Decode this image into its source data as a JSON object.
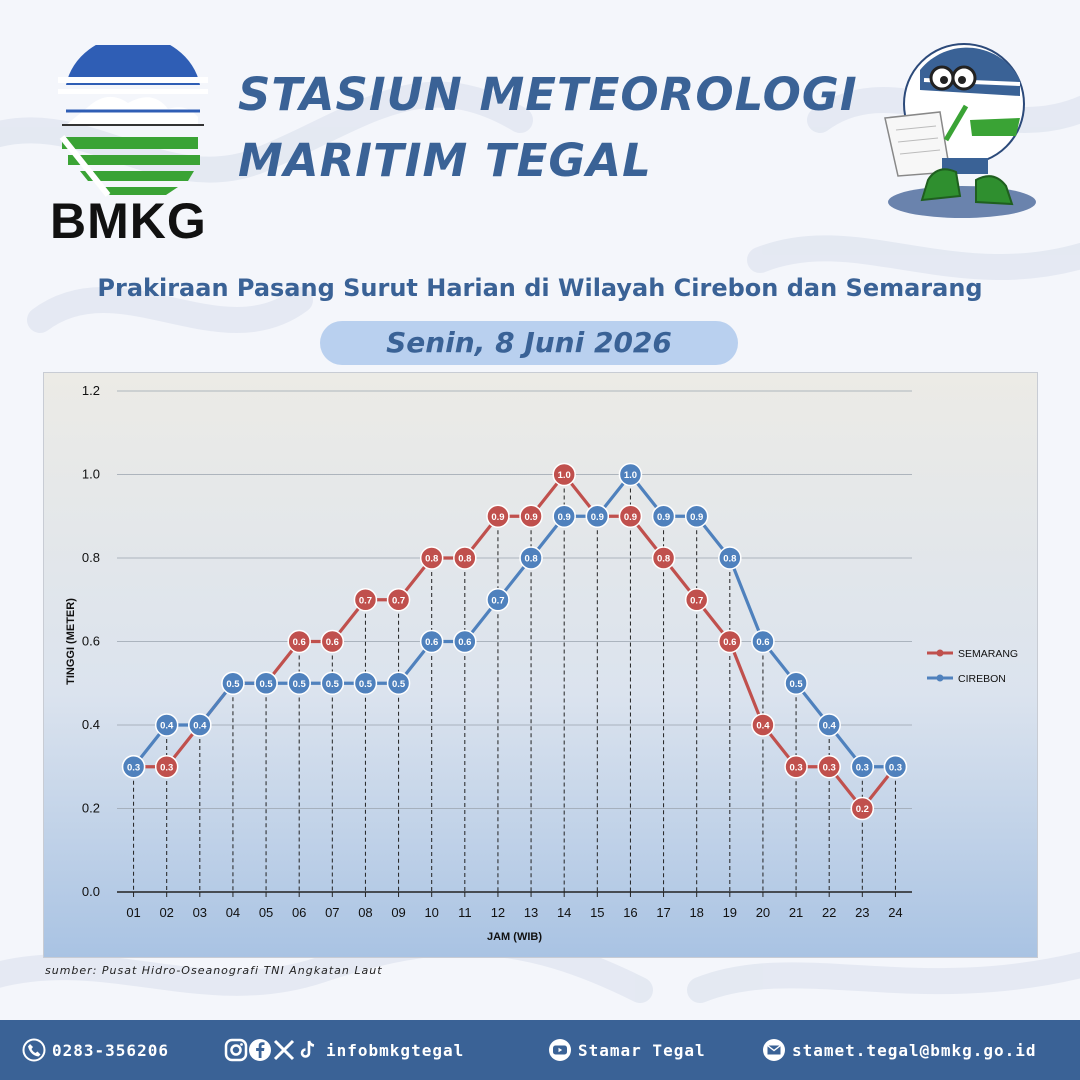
{
  "header": {
    "logo_text": "BMKG",
    "title_line1": "STASIUN METEOROLOGI",
    "title_line2": "MARITIM TEGAL"
  },
  "subtitle": "Prakiraan Pasang Surut Harian di Wilayah Cirebon dan Semarang",
  "date": "Senin, 8 Juni 2026",
  "source": "sumber: Pusat Hidro-Oseanografi TNI Angkatan Laut",
  "footer": {
    "phone": "0283-356206",
    "social": "infobmkgtegal",
    "youtube": "Stamar Tegal",
    "email": "stamet.tegal@bmkg.go.id"
  },
  "colors": {
    "accent": "#3a6296",
    "semarang": "#c0504d",
    "cirebon": "#4f81bd"
  },
  "icons": [
    "phone-icon",
    "instagram-icon",
    "facebook-icon",
    "x-icon",
    "tiktok-icon",
    "youtube-icon",
    "mail-icon"
  ],
  "chart_data": {
    "type": "line",
    "xlabel": "JAM (WIB)",
    "ylabel": "TINGGI (METER)",
    "ylim": [
      0,
      1.2
    ],
    "yticks": [
      "0.0",
      "0.2",
      "0.4",
      "0.6",
      "0.8",
      "1.0",
      "1.2"
    ],
    "grid": true,
    "legend_position": "right",
    "categories": [
      "01",
      "02",
      "03",
      "04",
      "05",
      "06",
      "07",
      "08",
      "09",
      "10",
      "11",
      "12",
      "13",
      "14",
      "15",
      "16",
      "17",
      "18",
      "19",
      "20",
      "21",
      "22",
      "23",
      "24"
    ],
    "series": [
      {
        "name": "SEMARANG",
        "color": "#c0504d",
        "values": [
          0.3,
          0.3,
          0.4,
          0.5,
          0.5,
          0.6,
          0.6,
          0.7,
          0.7,
          0.8,
          0.8,
          0.9,
          0.9,
          1.0,
          0.9,
          0.9,
          0.8,
          0.7,
          0.6,
          0.4,
          0.3,
          0.3,
          0.2,
          0.3
        ]
      },
      {
        "name": "CIREBON",
        "color": "#4f81bd",
        "values": [
          0.3,
          0.4,
          0.4,
          0.5,
          0.5,
          0.5,
          0.5,
          0.5,
          0.5,
          0.6,
          0.6,
          0.7,
          0.8,
          0.9,
          0.9,
          1.0,
          0.9,
          0.9,
          0.8,
          0.6,
          0.5,
          0.4,
          0.3,
          0.3
        ]
      }
    ]
  }
}
